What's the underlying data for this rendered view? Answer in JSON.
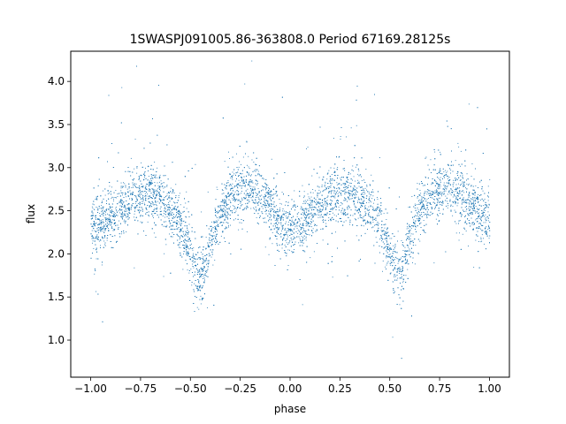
{
  "chart_data": {
    "type": "scatter",
    "title": "1SWASPJ091005.86-363808.0 Period 67169.28125s",
    "xlabel": "phase",
    "ylabel": "flux",
    "xlim": [
      -1.1,
      1.1
    ],
    "ylim": [
      0.57,
      4.35
    ],
    "x_ticks": [
      -1.0,
      -0.75,
      -0.5,
      -0.25,
      0.0,
      0.25,
      0.5,
      0.75,
      1.0
    ],
    "x_tick_labels": [
      "−1.00",
      "−0.75",
      "−0.50",
      "−0.25",
      "0.00",
      "0.25",
      "0.50",
      "0.75",
      "1.00"
    ],
    "y_ticks": [
      1.0,
      1.5,
      2.0,
      2.5,
      3.0,
      3.5,
      4.0
    ],
    "y_tick_labels": [
      "1.0",
      "1.5",
      "2.0",
      "2.5",
      "3.0",
      "3.5",
      "4.0"
    ],
    "grid": false,
    "legend": "none",
    "point_color": "#1f77b4",
    "series": [
      {
        "x": [
          -1.0,
          -0.95,
          -0.9,
          -0.85,
          -0.8,
          -0.75,
          -0.7,
          -0.65,
          -0.6,
          -0.55,
          -0.5,
          -0.47,
          -0.45,
          -0.43,
          -0.4,
          -0.35,
          -0.3,
          -0.25,
          -0.2,
          -0.15,
          -0.1,
          -0.05,
          0.0,
          0.05,
          0.1,
          0.15,
          0.2,
          0.25,
          0.3,
          0.35,
          0.4,
          0.45,
          0.5,
          0.53,
          0.55,
          0.57,
          0.6,
          0.65,
          0.7,
          0.75,
          0.8,
          0.85,
          0.9,
          0.95,
          1.0
        ],
        "y": [
          2.3,
          2.35,
          2.45,
          2.55,
          2.65,
          2.7,
          2.72,
          2.65,
          2.55,
          2.35,
          2.0,
          1.8,
          1.75,
          1.85,
          2.15,
          2.5,
          2.68,
          2.75,
          2.76,
          2.7,
          2.55,
          2.35,
          2.25,
          2.3,
          2.45,
          2.58,
          2.65,
          2.7,
          2.72,
          2.65,
          2.55,
          2.35,
          2.0,
          1.8,
          1.75,
          1.85,
          2.15,
          2.5,
          2.68,
          2.75,
          2.76,
          2.7,
          2.6,
          2.45,
          2.35
        ]
      }
    ]
  }
}
